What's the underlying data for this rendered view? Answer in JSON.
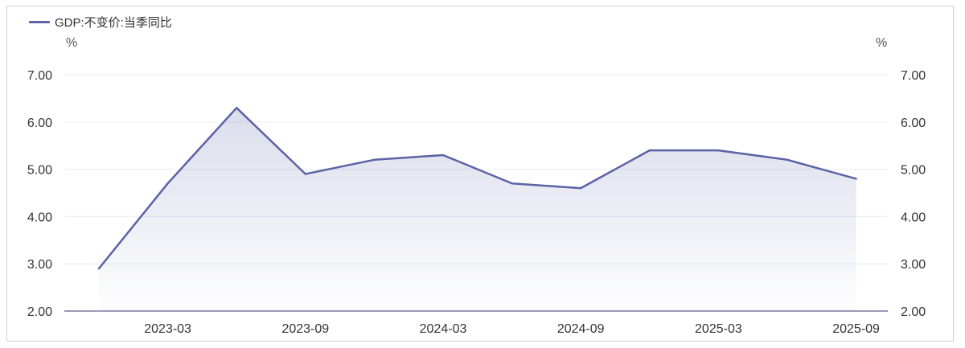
{
  "chart_data": {
    "type": "area",
    "legend": "GDP:不变价:当季同比",
    "y_unit_left": "%",
    "y_unit_right": "%",
    "ylim": [
      2.0,
      7.0
    ],
    "yticks": [
      "2.00",
      "3.00",
      "4.00",
      "5.00",
      "6.00",
      "7.00"
    ],
    "x_tick_labels": [
      "2023-03",
      "2023-09",
      "2024-03",
      "2024-09",
      "2025-03",
      "2025-09"
    ],
    "x": [
      "2022-12",
      "2023-03",
      "2023-06",
      "2023-09",
      "2023-12",
      "2024-03",
      "2024-06",
      "2024-09",
      "2024-12",
      "2025-03",
      "2025-06",
      "2025-09"
    ],
    "series": [
      {
        "name": "GDP:不变价:当季同比",
        "values": [
          2.9,
          4.7,
          6.3,
          4.9,
          5.2,
          5.3,
          4.7,
          4.6,
          5.4,
          5.4,
          5.2,
          4.8
        ]
      }
    ],
    "color": "#5a63a5",
    "grid": true,
    "legend_position": "top-left"
  }
}
